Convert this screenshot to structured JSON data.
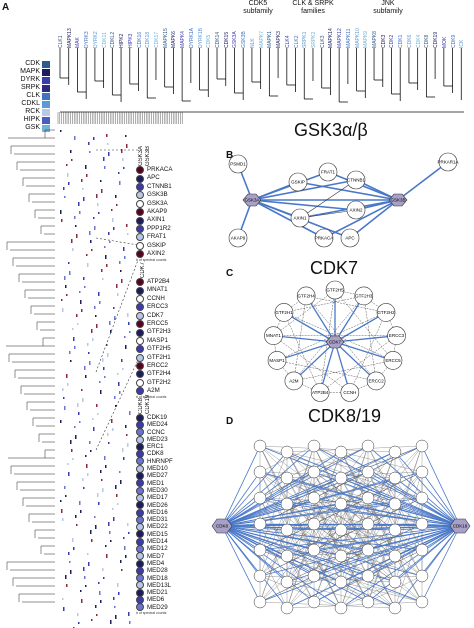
{
  "panels": {
    "a": "A",
    "b": "B",
    "c": "C",
    "d": "D"
  },
  "families": [
    {
      "name": "CDK",
      "color": "#2e5b8a"
    },
    {
      "name": "MAPK",
      "color": "#1c1c5e"
    },
    {
      "name": "DYRK",
      "color": "#3b3bb0"
    },
    {
      "name": "SRPK",
      "color": "#2a2a80"
    },
    {
      "name": "CLK",
      "color": "#3e73c4"
    },
    {
      "name": "CDKL",
      "color": "#5a9ad6"
    },
    {
      "name": "RCK",
      "color": "#b8c8e8"
    },
    {
      "name": "HIPK",
      "color": "#4a5ec0"
    },
    {
      "name": "GSK",
      "color": "#6fb3d6"
    }
  ],
  "subfamilies": [
    {
      "label": "CDK5\nsubfamily"
    },
    {
      "label": "CLK & SRPK\nfamilies"
    },
    {
      "label": "JNK\nsubfamily"
    }
  ],
  "kinases": [
    "CLK1",
    "MAPK13",
    "MAK",
    "DYRK3",
    "DYRK2",
    "CDK11",
    "CDKL2",
    "HIPK2",
    "HIPK3",
    "CDK16",
    "CDK18",
    "CDK17",
    "MAPK15",
    "MAPK6",
    "MAPK4",
    "DYRK1A",
    "DYRK1B",
    "CDK5",
    "CDK14",
    "CDK15",
    "GSK3A",
    "GSK3B",
    "NLK",
    "MAPK7",
    "MAPK1",
    "MAPK3",
    "CLK4",
    "CLK2",
    "SRPK1",
    "SRPK2",
    "CLK3",
    "MAPK14",
    "MAPK12",
    "MAPK11",
    "MAPK10",
    "MAPK9",
    "MAPK8",
    "CDK3",
    "CDK2",
    "CDK1",
    "CDK6",
    "CDK4",
    "CDK8",
    "CDK19",
    "MOK",
    "CDK9",
    "ICK"
  ],
  "zoom_gsk": {
    "headers": [
      "GSK3A",
      "GSK3B"
    ],
    "rows": [
      "PRKACA",
      "APC",
      "CTNNB1",
      "GSK3B",
      "GSK3A",
      "AKAP9",
      "AXIN1",
      "PPP1R2",
      "FRAT1",
      "GSKIP",
      "AXIN2"
    ],
    "scale": "# of spectral counts"
  },
  "zoom_cdk7": {
    "headers": [
      "CDK7"
    ],
    "rows": [
      "ATP2B4",
      "MNAT1",
      "CCNH",
      "ERCC3",
      "CDK7",
      "ERCC5",
      "GTF2H3",
      "MASP1",
      "GTF2H5",
      "GTF2H1",
      "ERCC2",
      "GTF2H4",
      "GTF2H2",
      "A2M"
    ],
    "scale": "# of spectral counts"
  },
  "zoom_cdk8": {
    "headers": [
      "CDK8",
      "CDK19"
    ],
    "rows": [
      "CDK19",
      "MED24",
      "CCNC",
      "MED23",
      "ERC1",
      "CDK8",
      "HNRNPF",
      "MED10",
      "MED27",
      "MED1",
      "MED30",
      "MED17",
      "MED26",
      "MED16",
      "MED31",
      "MED22",
      "MED15",
      "MED14",
      "MED12",
      "MED7",
      "MED4",
      "MED28",
      "MED18",
      "MED13L",
      "MED21",
      "MED6",
      "MED29"
    ],
    "scale": "# of spectral counts"
  },
  "networks": {
    "b": {
      "title": "GSK3α/β",
      "nodes": [
        "PSMD1",
        "GSK3A",
        "GSK3B",
        "GSKIP",
        "FRAT1",
        "CTNNB1",
        "AXIN1",
        "AXIN2",
        "AKAP9",
        "PRKACA",
        "APC",
        "PRKAR1A"
      ]
    },
    "c": {
      "title": "CDK7",
      "nodes": [
        "GTF2H5",
        "GTF2H3",
        "GTF2H2",
        "ERCC3",
        "ERCC5",
        "ERCC2",
        "CCNH",
        "ATP2B4",
        "A2M",
        "MASP1",
        "MNAT1",
        "GTF2H1",
        "GTF2H4",
        "CDK7"
      ]
    },
    "d": {
      "title": "CDK8/19",
      "hub_left": "CDK8",
      "hub_right": "CDK19"
    }
  }
}
